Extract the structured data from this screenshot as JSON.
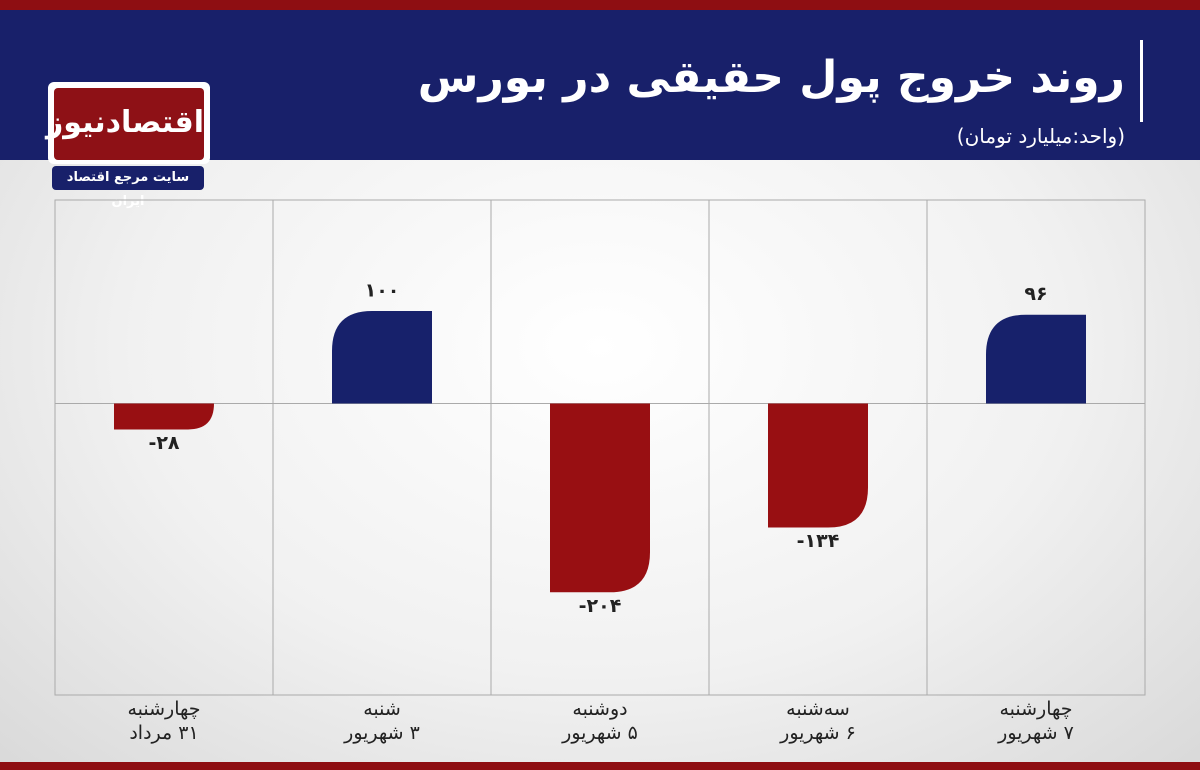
{
  "chart_data": {
    "type": "bar",
    "title": "روند خروج پول حقیقی در بورس",
    "subtitle": "(واحد:میلیارد تومان)",
    "logo": {
      "name": "اقتصادنیوز",
      "tagline": "سایت مرجع اقتصاد ایران"
    },
    "categories": [
      "چهارشنبه\n۳۱ مرداد",
      "شنبه\n۳ شهریور",
      "دوشنبه\n۵ شهریور",
      "سه‌شنبه\n۶ شهریور",
      "چهارشنبه\n۷ شهریور"
    ],
    "values": [
      -28,
      100,
      -204,
      -134,
      96
    ],
    "value_labels": [
      "-۲۸",
      "۱۰۰",
      "-۲۰۴",
      "-۱۳۴",
      "۹۶"
    ],
    "positive_color": "#17216b",
    "negative_color": "#980f12",
    "ylim": [
      -315,
      220
    ]
  }
}
